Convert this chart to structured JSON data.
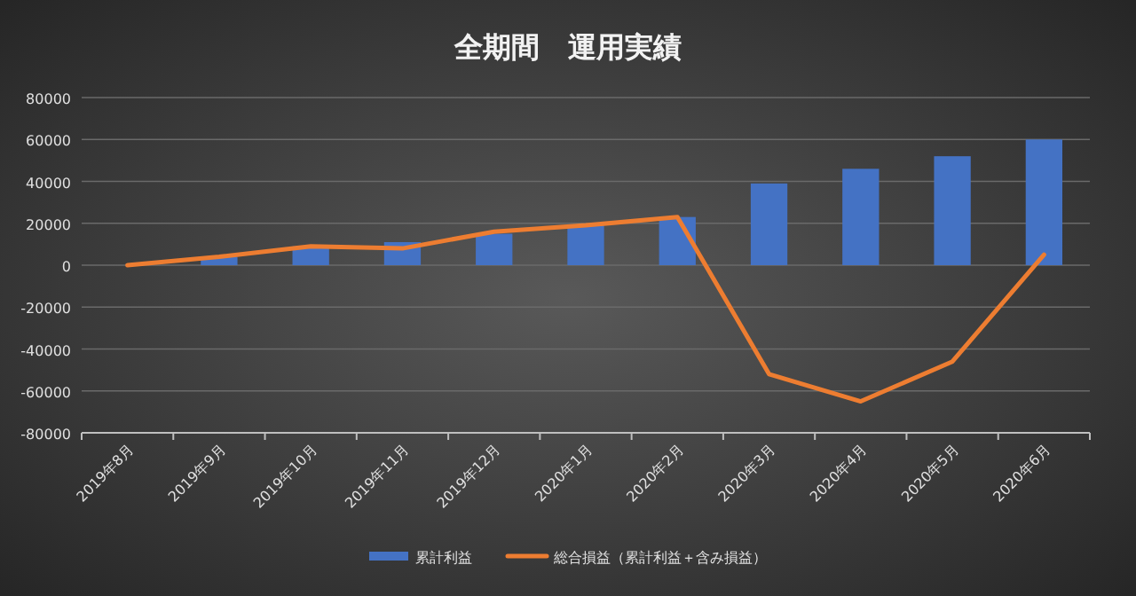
{
  "chart_data": {
    "type": "bar",
    "title": "全期間　運用実績",
    "categories": [
      "2019年8月",
      "2019年9月",
      "2019年10月",
      "2019年11月",
      "2019年12月",
      "2020年1月",
      "2020年2月",
      "2020年3月",
      "2020年4月",
      "2020年5月",
      "2020年6月"
    ],
    "series": [
      {
        "name": "累計利益",
        "color": "#4472c4",
        "values": [
          0,
          4000,
          9000,
          11000,
          15000,
          19000,
          23000,
          39000,
          46000,
          52000,
          60000
        ]
      },
      {
        "name": "総合損益（累計利益＋含み損益）",
        "type": "line",
        "color": "#ed7d31",
        "values": [
          0,
          4000,
          9000,
          8000,
          16000,
          19000,
          23000,
          -52000,
          -65000,
          -46000,
          5000
        ]
      }
    ],
    "ylim": [
      -80000,
      80000
    ],
    "yticks": [
      -80000,
      -60000,
      -40000,
      -20000,
      0,
      20000,
      40000,
      60000,
      80000
    ],
    "grid": "y",
    "legend": "bottom"
  }
}
